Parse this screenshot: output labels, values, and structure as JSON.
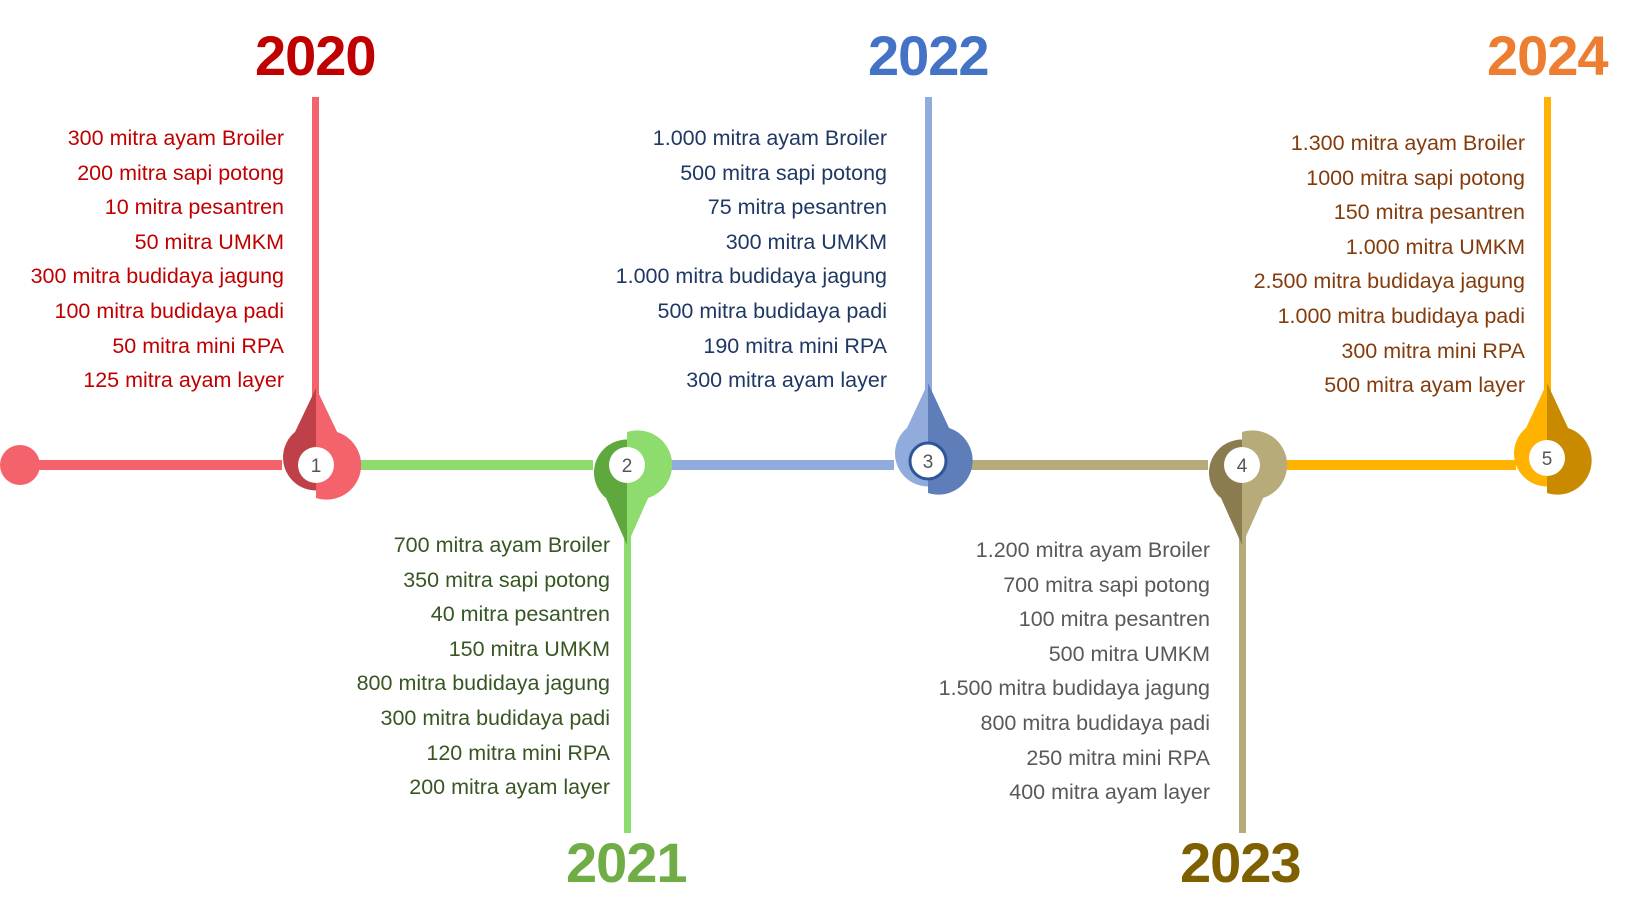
{
  "milestones": [
    {
      "year": "2020",
      "number": "1",
      "year_color": "#C00000",
      "text_color": "#C00000",
      "items": [
        "300 mitra ayam Broiler",
        "200 mitra sapi potong",
        "10 mitra pesantren",
        "50 mitra UMKM",
        "300 mitra budidaya jagung",
        "100 mitra budidaya padi",
        "50 mitra mini RPA",
        "125 mitra ayam layer"
      ]
    },
    {
      "year": "2021",
      "number": "2",
      "year_color": "#70AD47",
      "text_color": "#375623",
      "items": [
        "700 mitra ayam Broiler",
        "350 mitra sapi potong",
        "40 mitra pesantren",
        "150 mitra UMKM",
        "800 mitra budidaya jagung",
        "300 mitra budidaya padi",
        "120 mitra mini RPA",
        "200 mitra ayam layer"
      ]
    },
    {
      "year": "2022",
      "number": "3",
      "year_color": "#4472C4",
      "text_color": "#1F3864",
      "items": [
        "1.000 mitra ayam Broiler",
        "500 mitra sapi potong",
        "75 mitra pesantren",
        "300 mitra UMKM",
        "1.000 mitra budidaya jagung",
        "500 mitra budidaya padi",
        "190 mitra mini RPA",
        "300 mitra ayam layer"
      ]
    },
    {
      "year": "2023",
      "number": "4",
      "year_color": "#7F6000",
      "text_color": "#595959",
      "items": [
        "1.200 mitra ayam Broiler",
        "700 mitra sapi potong",
        "100 mitra pesantren",
        "500 mitra UMKM",
        "1.500 mitra budidaya jagung",
        "800 mitra budidaya padi",
        "250 mitra mini RPA",
        "400 mitra ayam layer"
      ]
    },
    {
      "year": "2024",
      "number": "5",
      "year_color": "#ED7D31",
      "text_color": "#843C0C",
      "items": [
        "1.300 mitra ayam Broiler",
        "1000 mitra sapi potong",
        "150 mitra pesantren",
        "1.000 mitra UMKM",
        "2.500 mitra budidaya jagung",
        "1.000 mitra budidaya padi",
        "300 mitra mini RPA",
        "500 mitra ayam layer"
      ]
    }
  ],
  "colors": {
    "segment_1": "#F4626B",
    "segment_2": "#8FDC6E",
    "segment_3": "#91ACDC",
    "segment_4": "#B7AC79",
    "segment_5": "#FFB300",
    "pin_1_dark": "#C0404A",
    "pin_2_dark": "#5FA83D",
    "pin_3_dark": "#5F7DB9",
    "pin_4_dark": "#8A7C4E",
    "pin_5_dark": "#E89F00"
  }
}
